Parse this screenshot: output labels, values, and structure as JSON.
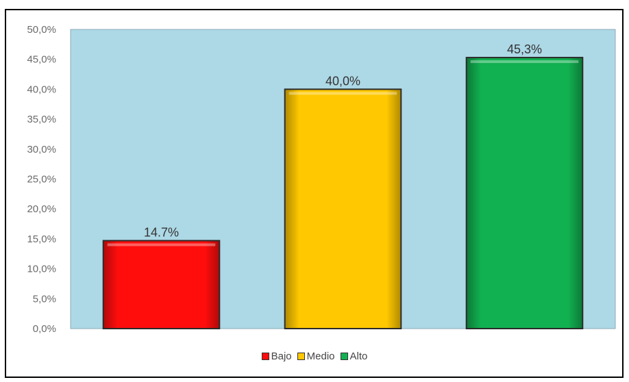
{
  "chart_data": {
    "type": "bar",
    "categories": [
      "Bajo",
      "Medio",
      "Alto"
    ],
    "values": [
      14.7,
      40.0,
      45.3
    ],
    "data_labels": [
      "14.7%",
      "40,0%",
      "45,3%"
    ],
    "colors": [
      "#ff0d0d",
      "#ffc800",
      "#11b050"
    ],
    "plot_background": "#add8e6",
    "ylim": [
      0,
      50
    ],
    "yticks": [
      "0,0%",
      "5,0%",
      "10,0%",
      "15,0%",
      "20,0%",
      "25,0%",
      "30,0%",
      "35,0%",
      "40,0%",
      "45,0%",
      "50,0%"
    ],
    "legend": {
      "placement": "bottom",
      "items": [
        "Bajo",
        "Medio",
        "Alto"
      ]
    },
    "grid": false,
    "title": "",
    "xlabel": "",
    "ylabel": ""
  }
}
